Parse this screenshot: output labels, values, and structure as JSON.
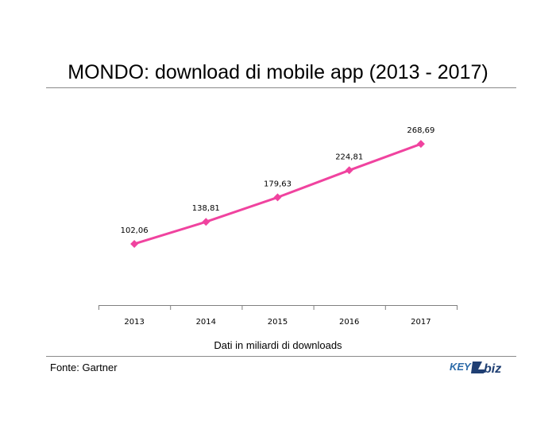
{
  "title": "MONDO: download di mobile app (2013 - 2017)",
  "note": "Dati in miliardi di downloads",
  "source": "Fonte: Gartner",
  "logo": {
    "text_left": "KEY",
    "text_right": "biz",
    "colors": {
      "primary": "#2b6aa8",
      "secondary": "#1f3f73"
    }
  },
  "chart_data": {
    "type": "line",
    "categories": [
      "2013",
      "2014",
      "2015",
      "2016",
      "2017"
    ],
    "series": [
      {
        "values": [
          102.06,
          138.81,
          179.63,
          224.81,
          268.69
        ],
        "labels": [
          "102,06",
          "138,81",
          "179,63",
          "224,81",
          "268,69"
        ],
        "color": "#f0439f"
      }
    ],
    "ylim": [
      0,
      310
    ],
    "grid": false,
    "legend": "none",
    "y_axis_visible": false
  }
}
